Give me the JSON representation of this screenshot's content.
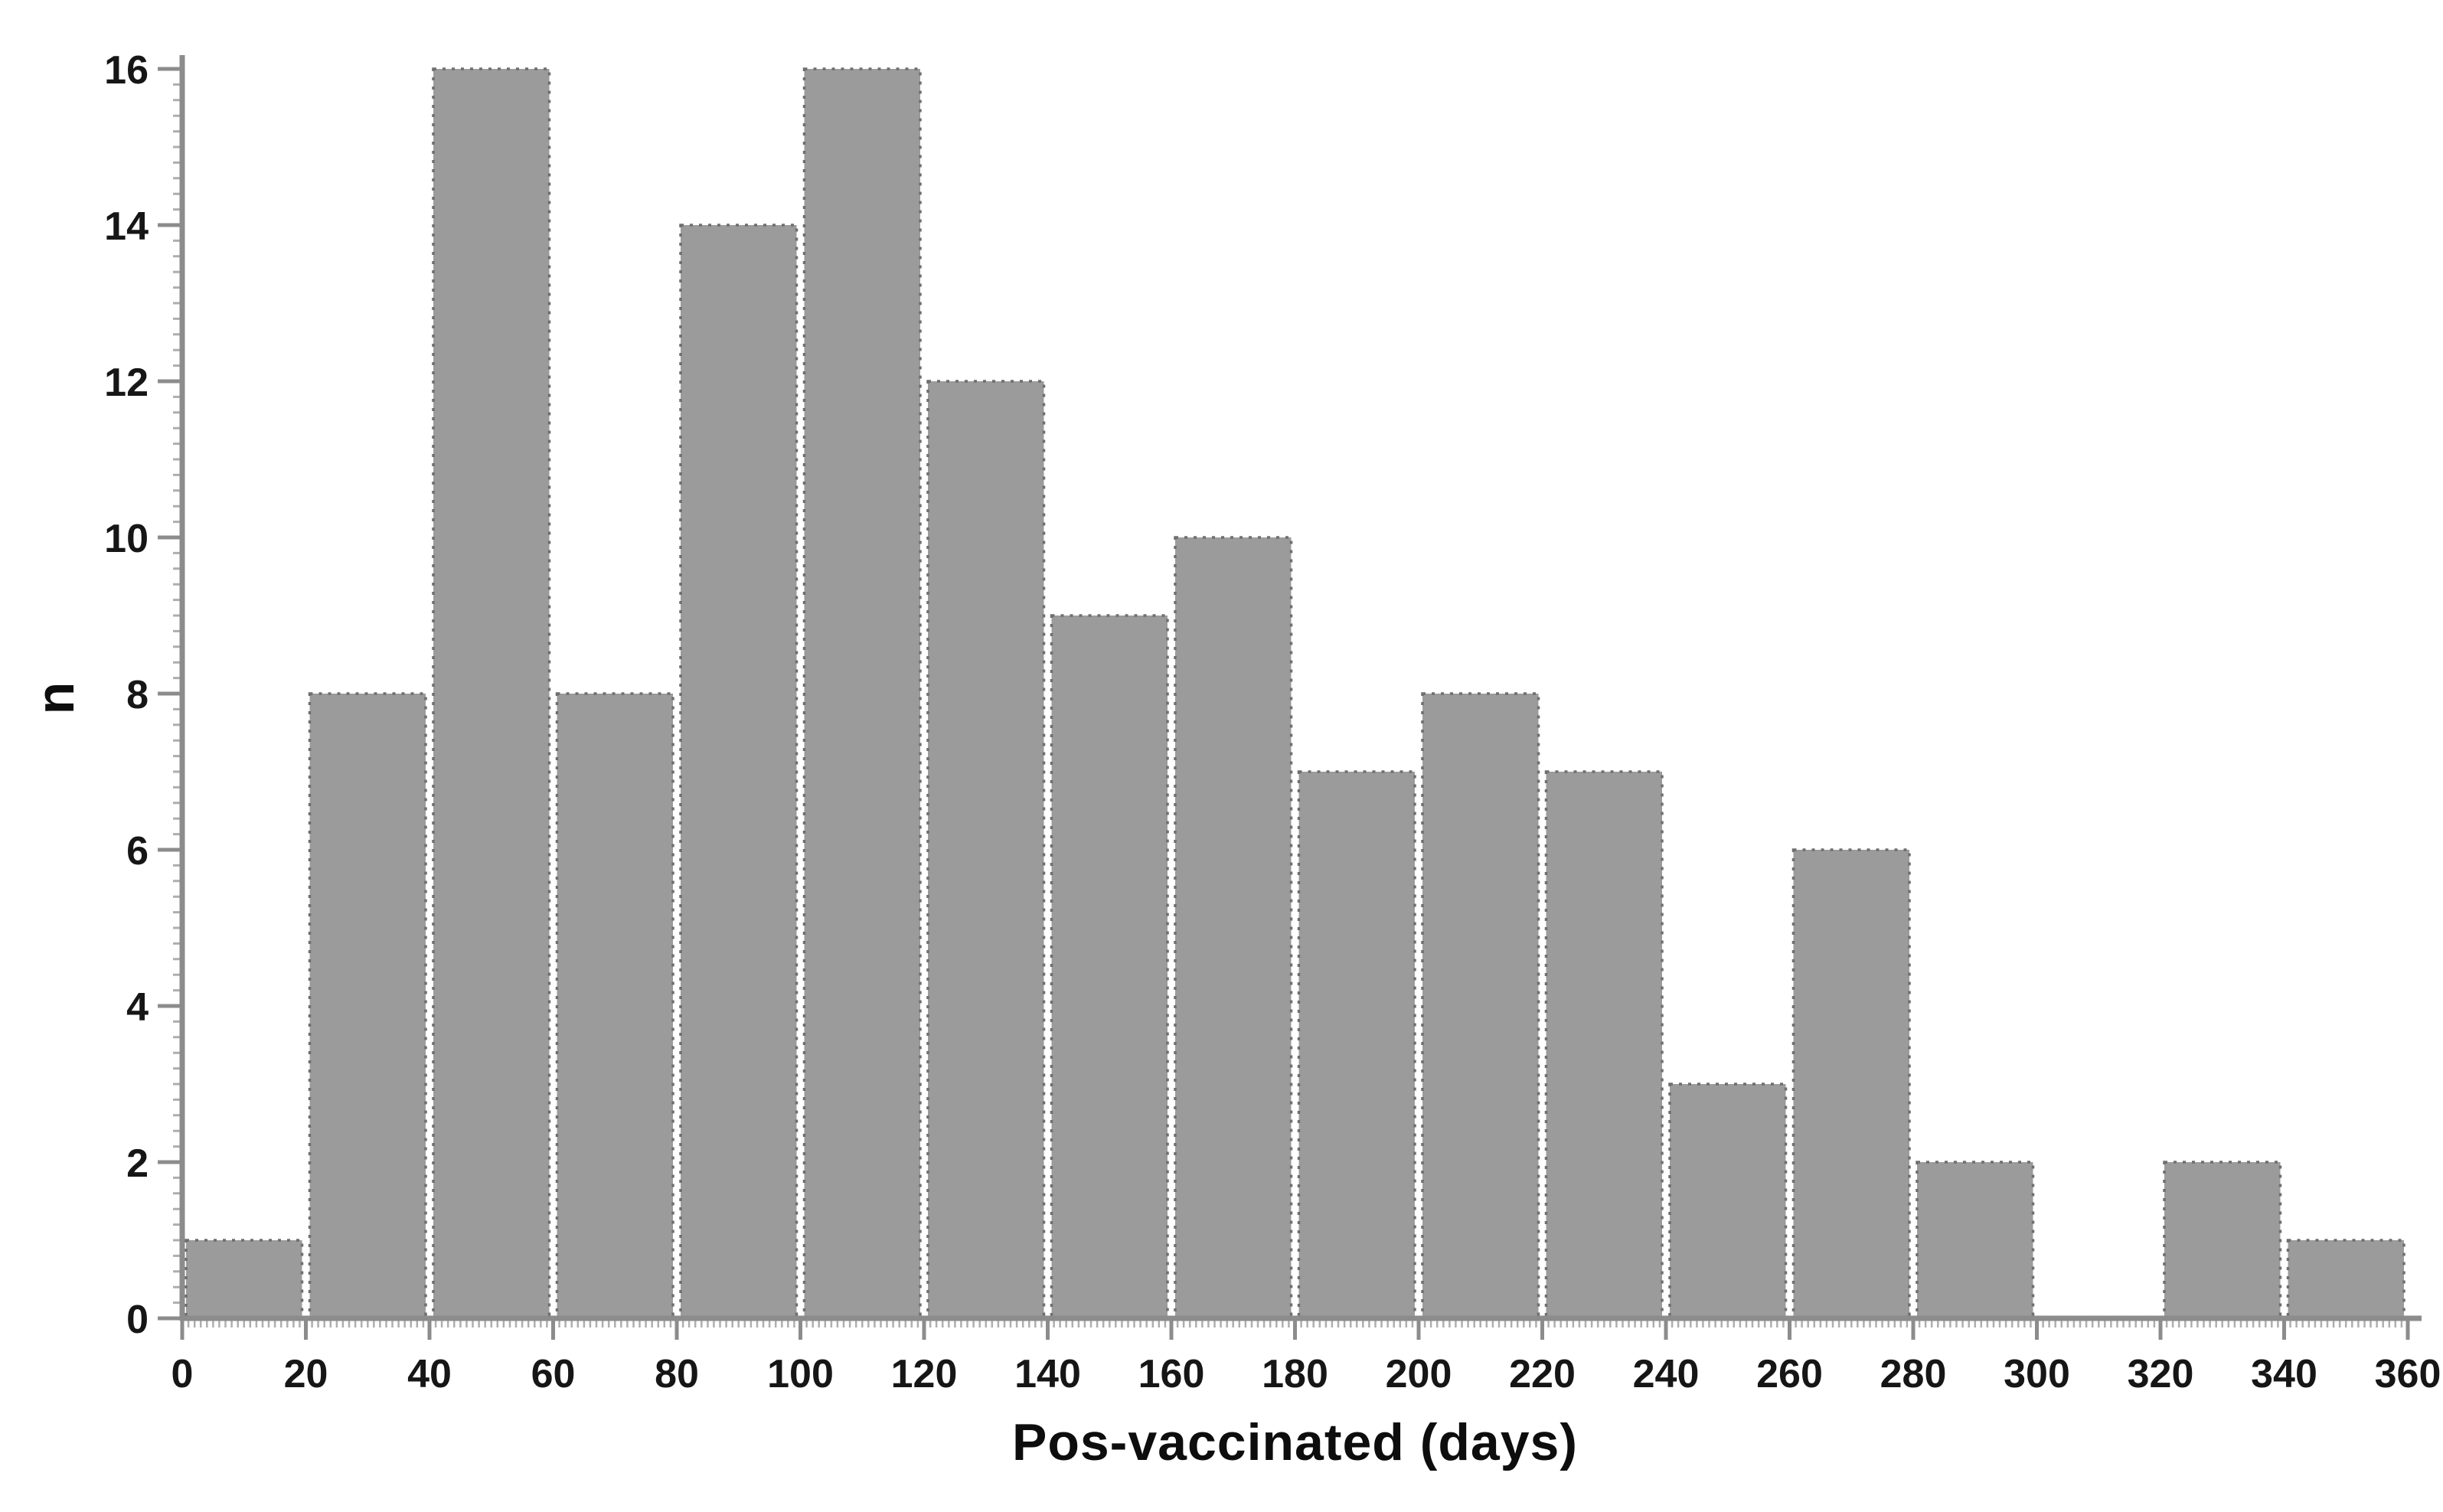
{
  "figure": {
    "background": "#ffffff"
  },
  "chart_data": {
    "type": "bar",
    "subtype": "histogram",
    "title": "",
    "xlabel": "Pos-vaccinated (days)",
    "ylabel": "n",
    "bin_width": 20,
    "bin_edges": [
      0,
      20,
      40,
      60,
      80,
      100,
      120,
      140,
      160,
      180,
      200,
      220,
      240,
      260,
      280,
      300,
      320,
      340,
      360
    ],
    "values": [
      1,
      8,
      16,
      8,
      14,
      16,
      12,
      9,
      10,
      7,
      8,
      7,
      3,
      6,
      2,
      0,
      2,
      1
    ],
    "x_ticks": [
      0,
      20,
      40,
      60,
      80,
      100,
      120,
      140,
      160,
      180,
      200,
      220,
      240,
      260,
      280,
      300,
      320,
      340,
      360
    ],
    "y_ticks": [
      0,
      2,
      4,
      6,
      8,
      10,
      12,
      14,
      16
    ],
    "xlim": [
      0,
      360
    ],
    "ylim": [
      0,
      16
    ],
    "grid": false,
    "legend": false,
    "colors": {
      "bar_fill": "#9b9b9b",
      "bar_edge": "#6f6f6f",
      "axis": "#8c8c8c",
      "minor_tick": "#aeaeae",
      "text": "#161616"
    }
  }
}
